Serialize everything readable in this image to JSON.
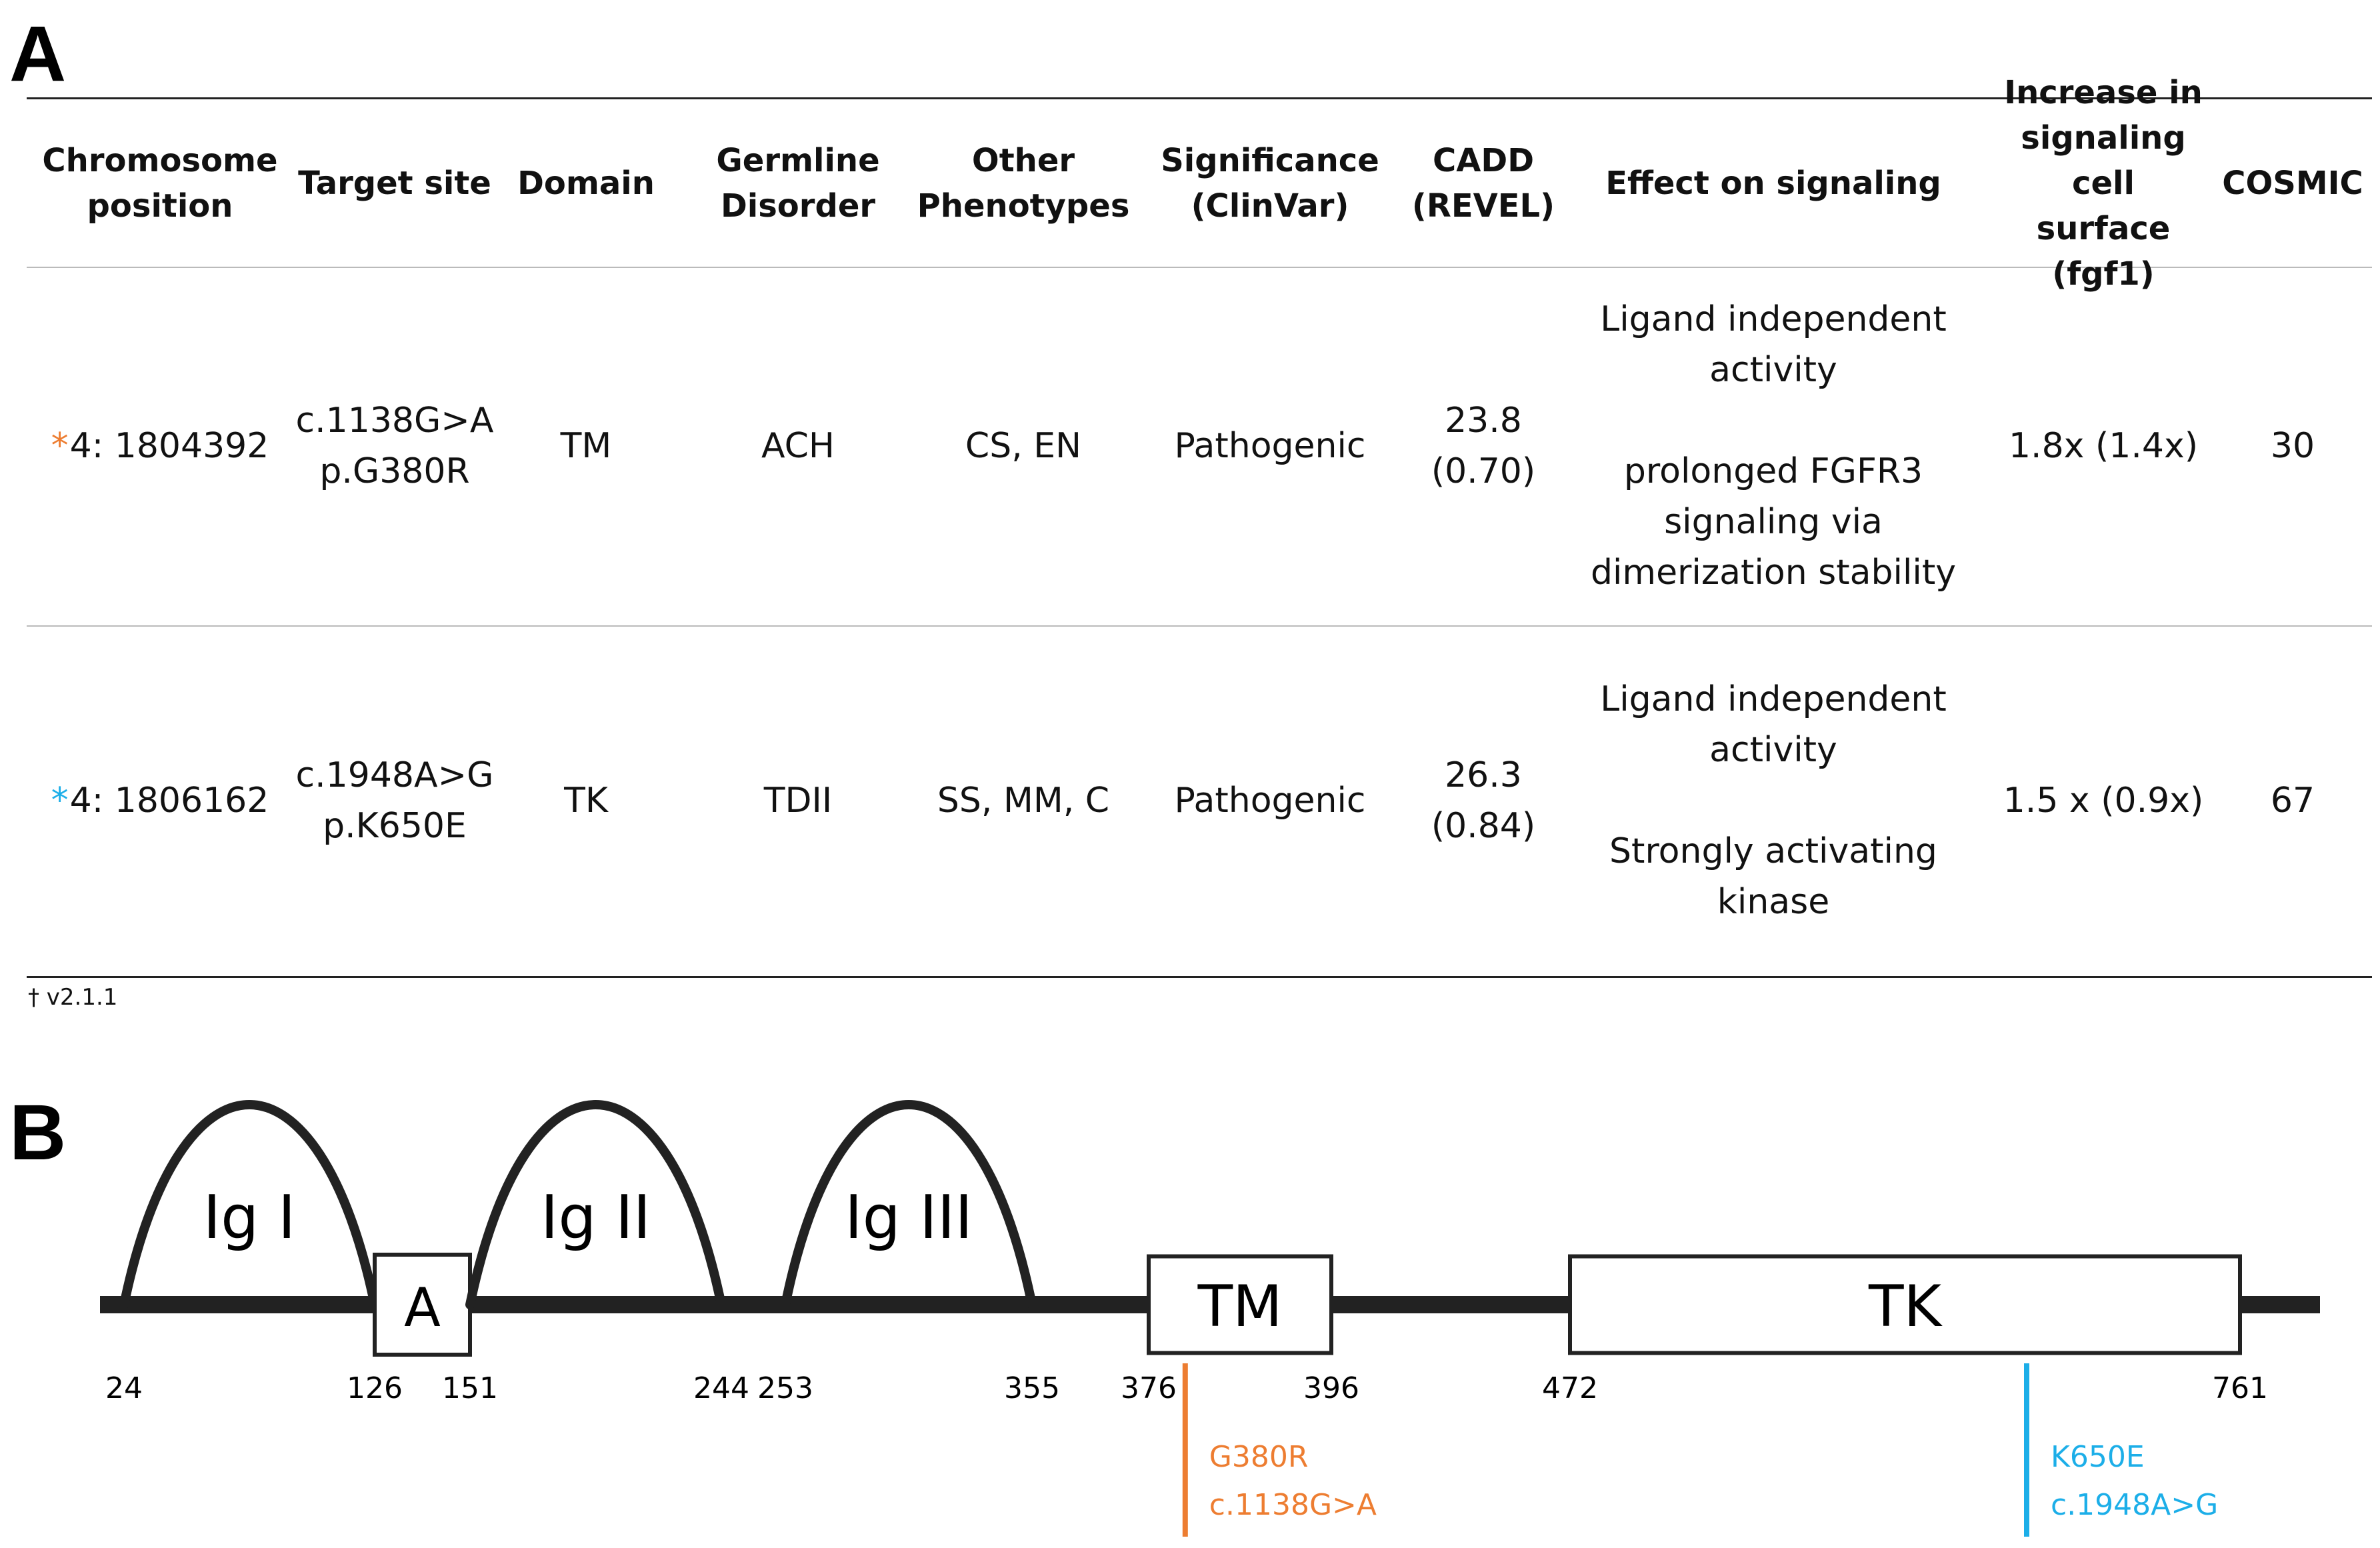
{
  "panel_a": {
    "letter": "A",
    "headers": [
      "Chromosome\nposition",
      "Target site",
      "Domain",
      "Germline\nDisorder",
      "Other\nPhenotypes",
      "Significance\n(ClinVar)",
      "CADD\n(REVEL)",
      "Effect on signaling",
      "Increase in\nsignaling cell\nsurface (fgf1)",
      "COSMIC"
    ],
    "rows": [
      {
        "star": "*",
        "star_color": "#ED7D31",
        "chromosome_position": "4: 1804392",
        "target_site": "c.1138G>A\np.G380R",
        "domain": "TM",
        "germline_disorder": "ACH",
        "other_phenotypes": "CS, EN",
        "significance": "Pathogenic",
        "cadd_revel": "23.8\n(0.70)",
        "effect": "Ligand independent\nactivity\n\nprolonged FGFR3\nsignaling via\ndimerization stability",
        "increase": "1.8x (1.4x)",
        "cosmic": "30"
      },
      {
        "star": "*",
        "star_color": "#1CAEE8",
        "chromosome_position": "4: 1806162",
        "target_site": "c.1948A>G\np.K650E",
        "domain": "TK",
        "germline_disorder": "TDII",
        "other_phenotypes": "SS, MM, C",
        "significance": "Pathogenic",
        "cadd_revel": "26.3\n(0.84)",
        "effect": "Ligand independent\nactivity\n\nStrongly activating\nkinase",
        "increase": "1.5 x (0.9x)",
        "cosmic": "67"
      }
    ],
    "footnote": "† v2.1.1"
  },
  "panel_b": {
    "letter": "B",
    "protein_length": 800,
    "domains": [
      {
        "label": "Ig I",
        "shape": "arc",
        "start": 24,
        "end": 126
      },
      {
        "label": "A",
        "shape": "box",
        "start": 126,
        "end": 151
      },
      {
        "label": "Ig II",
        "shape": "arc",
        "start": 151,
        "end": 244
      },
      {
        "label": "Ig III",
        "shape": "arc",
        "start": 253,
        "end": 355
      },
      {
        "label": "TM",
        "shape": "box",
        "start": 376,
        "end": 396
      },
      {
        "label": "TK",
        "shape": "box",
        "start": 472,
        "end": 761
      }
    ],
    "position_labels": [
      "24",
      "126",
      "151",
      "244",
      "253",
      "355",
      "376",
      "396",
      "472",
      "761"
    ],
    "mutations": [
      {
        "position": 380,
        "protein_change": "G380R",
        "dna_change": "c.1138G>A",
        "color": "#ED7D31"
      },
      {
        "position": 650,
        "protein_change": "K650E",
        "dna_change": "c.1948A>G",
        "color": "#1CAEE8"
      }
    ]
  }
}
